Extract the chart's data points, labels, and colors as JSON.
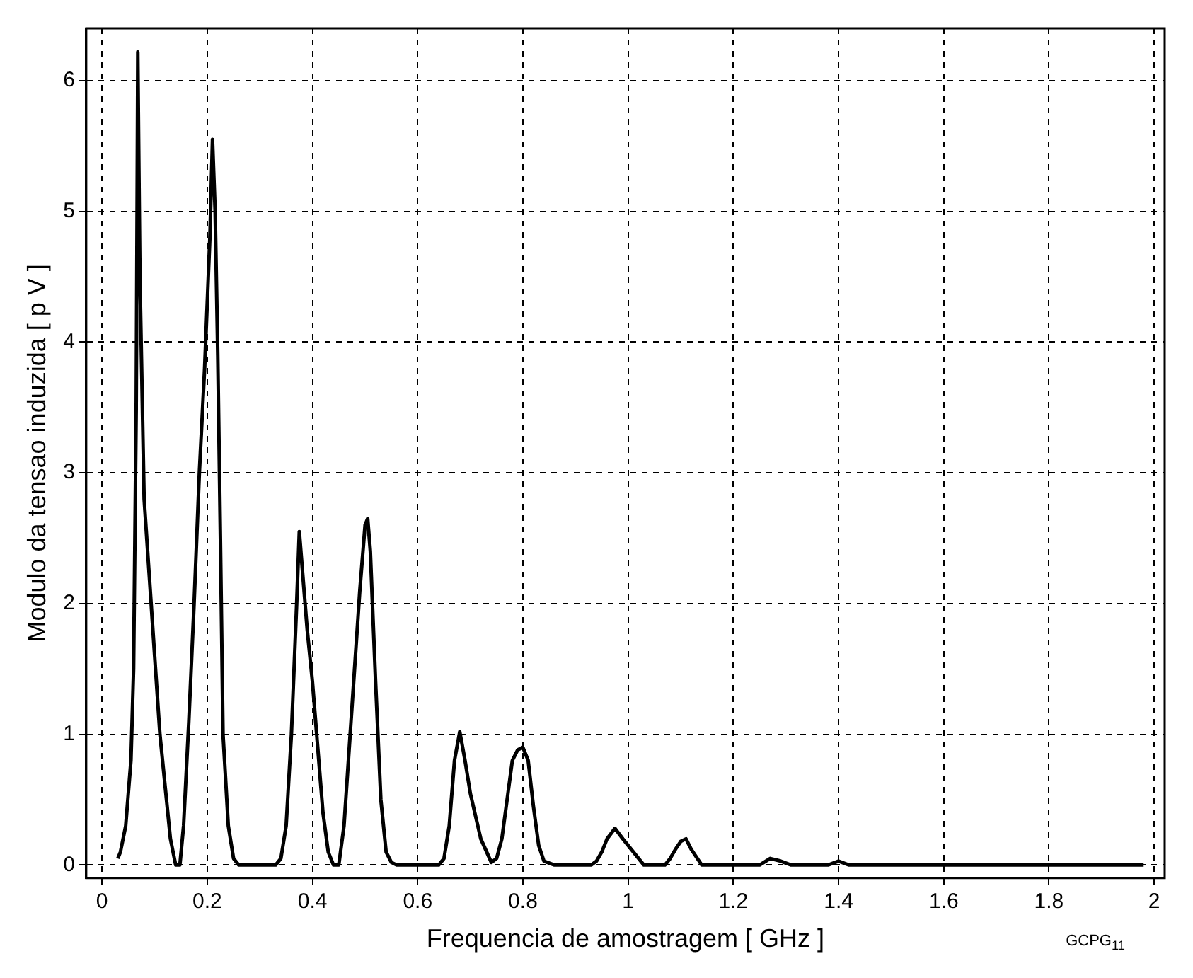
{
  "chart_data": {
    "type": "line",
    "xlabel": "Frequencia de amostragem [ GHz ]",
    "ylabel": "Modulo da tensao induzida [ p V ]",
    "annotations": [
      "GCPG$_{11}$"
    ],
    "series": [
      {
        "color": "#000000",
        "x": [
          0.03,
          0.035,
          0.045,
          0.055,
          0.06,
          0.065,
          0.068,
          0.072,
          0.08,
          0.09,
          0.1,
          0.11,
          0.12,
          0.13,
          0.14,
          0.148,
          0.155,
          0.165,
          0.175,
          0.185,
          0.195,
          0.205,
          0.21,
          0.215,
          0.22,
          0.225,
          0.23,
          0.24,
          0.25,
          0.26,
          0.33,
          0.34,
          0.35,
          0.36,
          0.37,
          0.375,
          0.38,
          0.39,
          0.4,
          0.41,
          0.42,
          0.43,
          0.44,
          0.45,
          0.46,
          0.47,
          0.48,
          0.49,
          0.5,
          0.505,
          0.51,
          0.52,
          0.53,
          0.54,
          0.55,
          0.56,
          0.59,
          0.64,
          0.65,
          0.66,
          0.67,
          0.68,
          0.69,
          0.7,
          0.72,
          0.74,
          0.75,
          0.76,
          0.77,
          0.78,
          0.79,
          0.8,
          0.81,
          0.82,
          0.83,
          0.84,
          0.86,
          0.93,
          0.94,
          0.95,
          0.96,
          0.975,
          0.99,
          1.01,
          1.03,
          1.07,
          1.08,
          1.09,
          1.1,
          1.11,
          1.12,
          1.14,
          1.25,
          1.27,
          1.29,
          1.31,
          1.38,
          1.4,
          1.42,
          1.98
        ],
        "values": [
          0.05,
          0.1,
          0.3,
          0.8,
          1.5,
          3.5,
          6.22,
          4.5,
          2.8,
          2.2,
          1.6,
          1.0,
          0.6,
          0.2,
          0.0,
          0.0,
          0.3,
          1.1,
          2.0,
          3.0,
          3.8,
          4.8,
          5.55,
          5.0,
          3.9,
          2.5,
          1.0,
          0.3,
          0.05,
          0.0,
          0.0,
          0.05,
          0.3,
          1.0,
          2.0,
          2.55,
          2.3,
          1.8,
          1.4,
          0.9,
          0.4,
          0.1,
          0.0,
          0.0,
          0.3,
          0.9,
          1.5,
          2.1,
          2.6,
          2.65,
          2.4,
          1.4,
          0.5,
          0.1,
          0.02,
          0.0,
          0.0,
          0.0,
          0.05,
          0.3,
          0.8,
          1.02,
          0.8,
          0.55,
          0.2,
          0.02,
          0.05,
          0.2,
          0.5,
          0.8,
          0.88,
          0.9,
          0.8,
          0.45,
          0.15,
          0.03,
          0.0,
          0.0,
          0.03,
          0.1,
          0.2,
          0.28,
          0.2,
          0.1,
          0.0,
          0.0,
          0.05,
          0.12,
          0.18,
          0.2,
          0.12,
          0.0,
          0.0,
          0.05,
          0.03,
          0.0,
          0.0,
          0.03,
          0.0,
          0.0
        ]
      }
    ],
    "xlim": [
      -0.03,
      2.02
    ],
    "ylim": [
      -0.1,
      6.4
    ],
    "xticks": [
      0,
      0.2,
      0.4,
      0.6,
      0.8,
      1,
      1.2,
      1.4,
      1.6,
      1.8,
      2
    ],
    "yticks": [
      0,
      1,
      2,
      3,
      4,
      5,
      6
    ],
    "grid": true,
    "legend": false,
    "marker": "none",
    "line_style": "solid"
  }
}
